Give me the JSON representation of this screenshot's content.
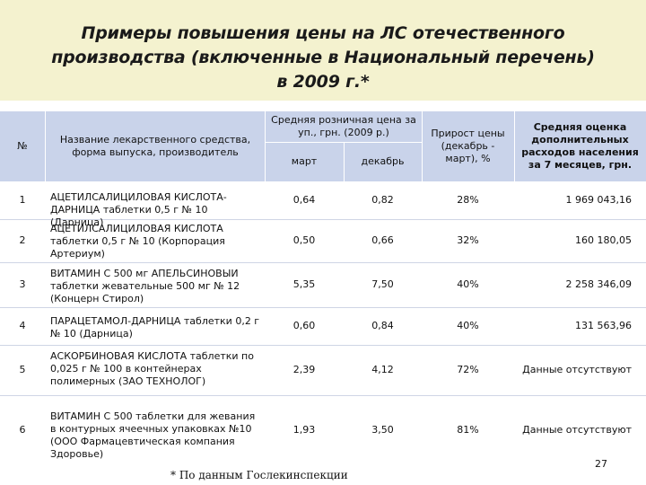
{
  "title": {
    "lines": [
      "Примеры повышения цены на ЛС отечественного",
      "производства (включенные в Национальный перечень)",
      "в 2009 г.*"
    ]
  },
  "table": {
    "headers": {
      "num": "№",
      "name": "Название лекарственного средства, форма выпуска, производитель",
      "price_group": "Средняя розничная цена за уп., грн. (2009 р.)",
      "march": "март",
      "december": "декабрь",
      "growth": "Прирост цены (декабрь - март), %",
      "extra": "Средняя оценка дополнительных расходов населения за 7 месяцев, грн."
    },
    "rows": [
      {
        "num": "1",
        "name": "АЦЕТИЛСАЛИЦИЛОВАЯ КИСЛОТА-ДАРНИЦА таблетки 0,5 г № 10 (Дарница)",
        "march": "0,64",
        "december": "0,82",
        "growth": "28%",
        "extra": "1 969 043,16"
      },
      {
        "num": "2",
        "name": "АЦЕТИЛСАЛИЦИЛОВАЯ КИСЛОТА таблетки 0,5 г № 10 (Корпорация Артериум)",
        "march": "0,50",
        "december": "0,66",
        "growth": "32%",
        "extra": "160 180,05"
      },
      {
        "num": "3",
        "name": "ВИТАМИН С 500 мг АПЕЛЬСИНОВЫИ таблетки жевательные 500 мг № 12 (Концерн Стирол)",
        "march": "5,35",
        "december": "7,50",
        "growth": "40%",
        "extra": "2 258 346,09"
      },
      {
        "num": "4",
        "name": "ПАРАЦЕТАМОЛ-ДАРНИЦА таблетки 0,2 г № 10 (Дарница)",
        "march": "0,60",
        "december": "0,84",
        "growth": "40%",
        "extra": "131 563,96"
      },
      {
        "num": "5",
        "name": "АСКОРБИНОВАЯ КИСЛОТА таблетки по 0,025 г № 100 в контейнерах полимерных (ЗАО ТЕХНОЛОГ)",
        "march": "2,39",
        "december": "4,12",
        "growth": "72%",
        "extra": "Данные отсутствуют"
      },
      {
        "num": "6",
        "name": "ВИТАМИН С 500 таблетки для жевания в контурных ячеечных упаковках №10 (ООО Фармацевтическая компания Здоровье)",
        "march": "1,93",
        "december": "3,50",
        "growth": "81%",
        "extra": "Данные отсутствуют"
      }
    ]
  },
  "footnote": "* По данным Гослекинспекции",
  "page_number": "27"
}
